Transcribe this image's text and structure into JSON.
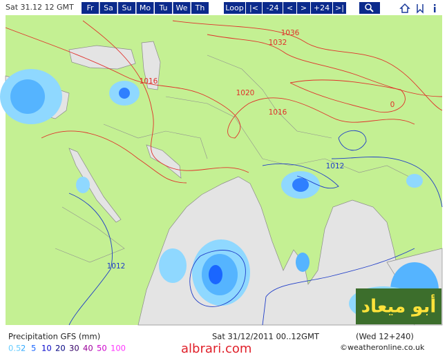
{
  "header": {
    "date": "Sat 31.12 12 GMT",
    "days": [
      "Fr",
      "Sa",
      "Su",
      "Mo",
      "Tu",
      "We",
      "Th"
    ],
    "nav": [
      "Loop",
      "|<",
      "-24",
      "<",
      ">",
      "+24",
      ">|"
    ]
  },
  "map": {
    "isobar_labels": [
      "1036",
      "1032",
      "1016",
      "1020",
      "1016",
      "0",
      "1012",
      "1012"
    ]
  },
  "footer": {
    "title": "Precipitation GFS (mm)",
    "legend": [
      {
        "label": "0.5",
        "color": "#66ccff"
      },
      {
        "label": "2",
        "color": "#33aaff"
      },
      {
        "label": "5",
        "color": "#1a66ff"
      },
      {
        "label": "10",
        "color": "#0000cc"
      },
      {
        "label": "20",
        "color": "#000080"
      },
      {
        "label": "30",
        "color": "#330066"
      },
      {
        "label": "40",
        "color": "#990099"
      },
      {
        "label": "50",
        "color": "#cc00cc"
      },
      {
        "label": "100",
        "color": "#ff33ff"
      }
    ],
    "run": "Sat 31/12/2011 00..12GMT",
    "range": "(Wed 12+240)",
    "credit": "©weatheronline.co.uk"
  },
  "watermarks": {
    "site": "albrari.com",
    "arabic": "أبو ميعاد"
  }
}
